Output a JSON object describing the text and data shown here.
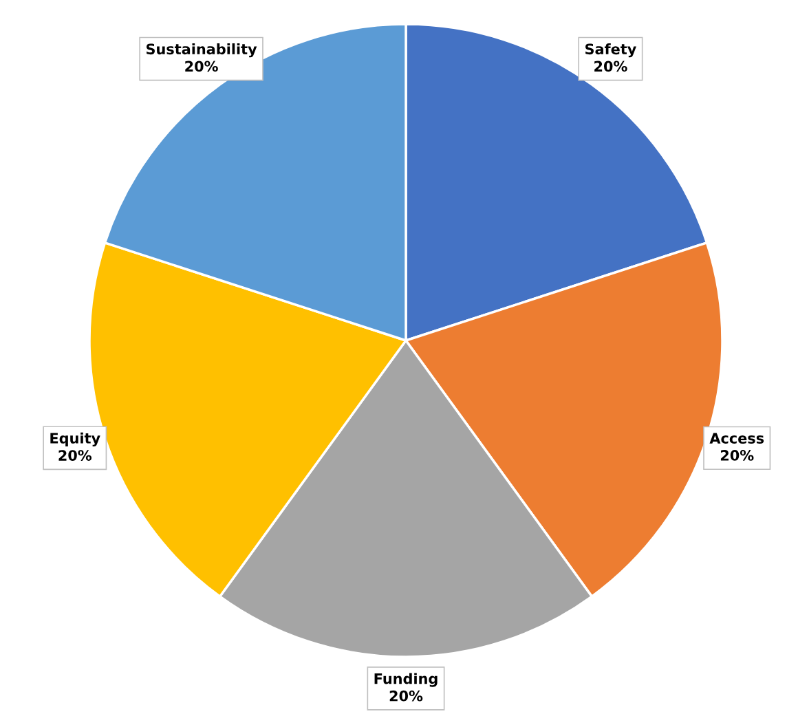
{
  "chart_data": {
    "type": "pie",
    "categories": [
      "Safety",
      "Access",
      "Funding",
      "Equity",
      "Sustainability"
    ],
    "values": [
      20,
      20,
      20,
      20,
      20
    ],
    "value_labels": [
      "20%",
      "20%",
      "20%",
      "20%",
      "20%"
    ],
    "colors": [
      "#4472c4",
      "#ed7d31",
      "#a5a5a5",
      "#ffc000",
      "#5b9bd5"
    ],
    "legend": false
  }
}
